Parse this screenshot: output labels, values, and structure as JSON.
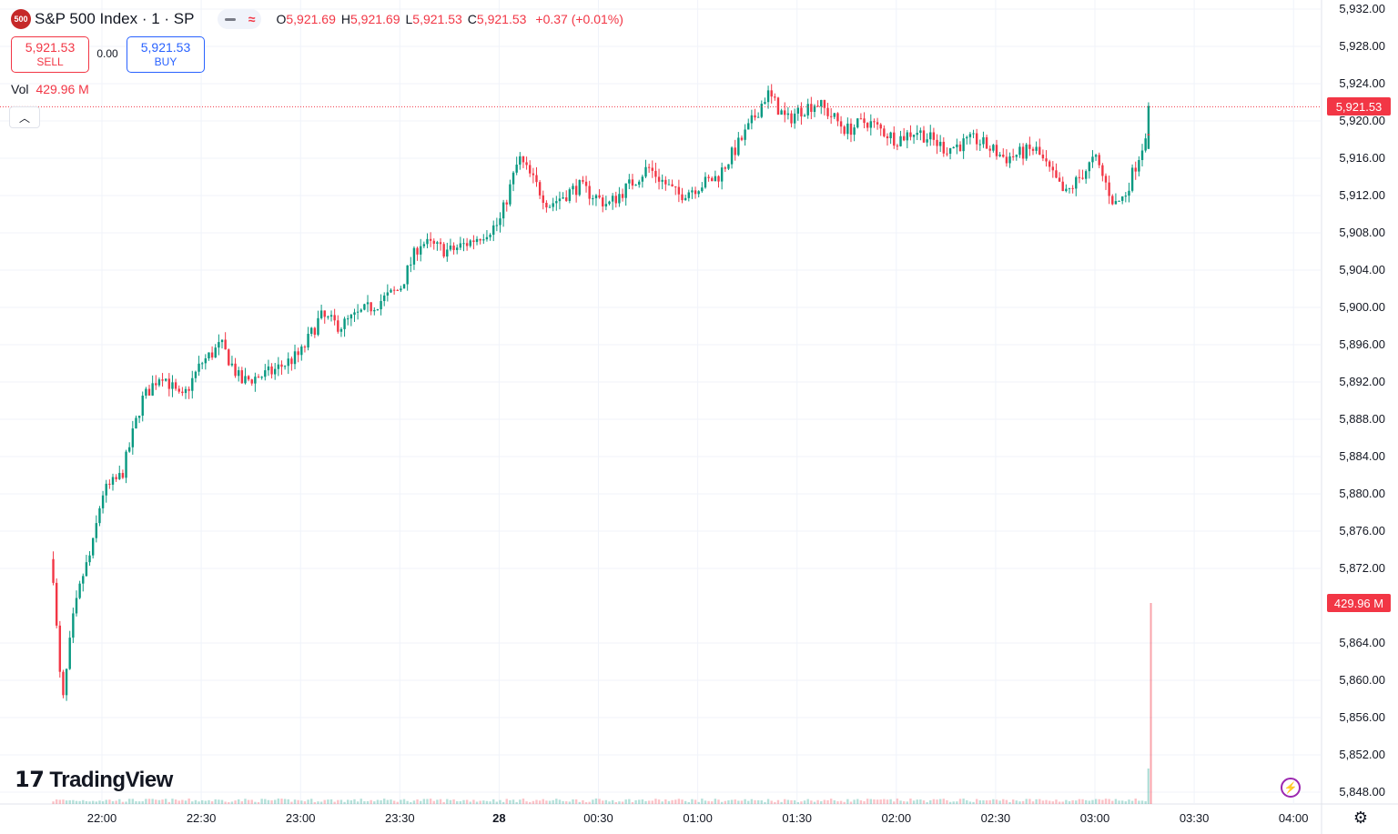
{
  "header": {
    "logo_text": "500",
    "symbol": "S&P 500 Index · 1 · SP",
    "ohlc": [
      {
        "key": "O",
        "value": "5,921.69"
      },
      {
        "key": "H",
        "value": "5,921.69"
      },
      {
        "key": "L",
        "value": "5,921.53"
      },
      {
        "key": "C",
        "value": "5,921.53"
      }
    ],
    "change": "+0.37 (+0.01%)"
  },
  "trade": {
    "sell_price": "5,921.53",
    "sell_label": "SELL",
    "spread": "0.00",
    "buy_price": "5,921.53",
    "buy_label": "BUY"
  },
  "volume": {
    "label": "Vol",
    "value": "429.96 M"
  },
  "price_tag": "5,921.53",
  "volume_tag": "429.96 M",
  "brand": "TradingView",
  "icons": {
    "collapse": "chevron-up-icon",
    "settings": "gear-icon",
    "alert": "lightning-icon",
    "logo": "tradingview-logo-icon"
  },
  "colors": {
    "up": "#089981",
    "down": "#f23645",
    "grid": "#f0f3fa",
    "price_line": "#f23645"
  },
  "chart_data": {
    "type": "candlestick",
    "timeframe": "1 minute",
    "y_ticks": [
      "5,932.00",
      "5,928.00",
      "5,924.00",
      "5,920.00",
      "5,916.00",
      "5,912.00",
      "5,908.00",
      "5,904.00",
      "5,900.00",
      "5,896.00",
      "5,892.00",
      "5,888.00",
      "5,884.00",
      "5,880.00",
      "5,876.00",
      "5,872.00",
      "5,864.00",
      "5,860.00",
      "5,856.00",
      "5,852.00",
      "5,848.00"
    ],
    "ylim": [
      5847,
      5933
    ],
    "x_ticks": [
      "22:00",
      "22:30",
      "23:00",
      "23:30",
      "28",
      "00:30",
      "01:00",
      "01:30",
      "02:00",
      "02:30",
      "03:00",
      "03:30",
      "04:00"
    ],
    "last_price": 5921.53,
    "close_anchors": [
      [
        21.75,
        5873
      ],
      [
        21.77,
        5866
      ],
      [
        21.8,
        5857
      ],
      [
        21.85,
        5866
      ],
      [
        21.9,
        5871
      ],
      [
        21.95,
        5874
      ],
      [
        22.0,
        5880
      ],
      [
        22.1,
        5882
      ],
      [
        22.2,
        5890
      ],
      [
        22.3,
        5893
      ],
      [
        22.4,
        5890
      ],
      [
        22.5,
        5894
      ],
      [
        22.6,
        5896
      ],
      [
        22.7,
        5892
      ],
      [
        22.85,
        5893
      ],
      [
        23.0,
        5895
      ],
      [
        23.1,
        5899
      ],
      [
        23.2,
        5898
      ],
      [
        23.35,
        5900
      ],
      [
        23.5,
        5902
      ],
      [
        23.6,
        5907
      ],
      [
        23.75,
        5906
      ],
      [
        23.85,
        5907
      ],
      [
        24.0,
        5909
      ],
      [
        24.1,
        5916
      ],
      [
        24.25,
        5911
      ],
      [
        24.4,
        5913
      ],
      [
        24.55,
        5911
      ],
      [
        24.75,
        5915
      ],
      [
        24.9,
        5912
      ],
      [
        25.0,
        5913
      ],
      [
        25.1,
        5914
      ],
      [
        25.25,
        5919
      ],
      [
        25.35,
        5923
      ],
      [
        25.45,
        5920
      ],
      [
        25.5,
        5921
      ],
      [
        25.6,
        5922
      ],
      [
        25.75,
        5919
      ],
      [
        25.85,
        5920
      ],
      [
        26.0,
        5918
      ],
      [
        26.1,
        5919
      ],
      [
        26.25,
        5917
      ],
      [
        26.4,
        5918
      ],
      [
        26.55,
        5916
      ],
      [
        26.7,
        5917
      ],
      [
        26.85,
        5912
      ],
      [
        27.0,
        5916
      ],
      [
        27.1,
        5911
      ],
      [
        27.15,
        5912
      ],
      [
        27.25,
        5918
      ],
      [
        27.27,
        5921.53
      ]
    ],
    "volume_last": "429.96 M"
  }
}
